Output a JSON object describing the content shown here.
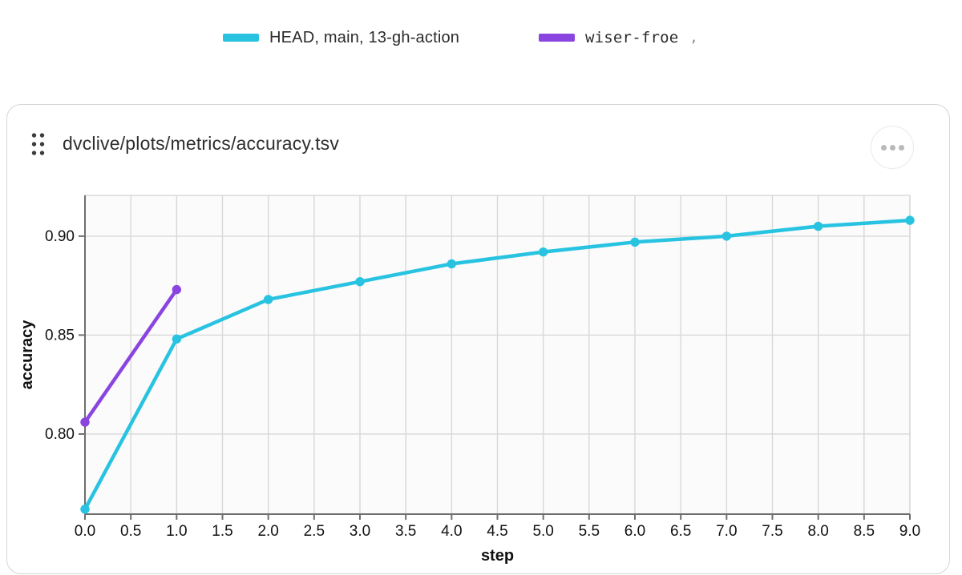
{
  "legend": {
    "items": [
      {
        "label": "HEAD, main, 13-gh-action",
        "suffix": "",
        "color": "#29c3e2",
        "font": "sans"
      },
      {
        "label": "wiser-froe",
        "suffix": ",",
        "color": "#8a45e0",
        "font": "mono"
      }
    ]
  },
  "card": {
    "title": "dvclive/plots/metrics/accuracy.tsv",
    "drag_handle_icon": "grip-dots",
    "menu_icon": "ellipsis-menu"
  },
  "chart_data": {
    "type": "line",
    "title": "",
    "xlabel": "step",
    "ylabel": "accuracy",
    "xlim": [
      0,
      9
    ],
    "ylim": [
      0.7595,
      0.9206
    ],
    "x_ticks": [
      0,
      0.5,
      1,
      1.5,
      2,
      2.5,
      3,
      3.5,
      4,
      4.5,
      5,
      5.5,
      6,
      6.5,
      7,
      7.5,
      8,
      8.5,
      9
    ],
    "y_ticks": [
      0.8,
      0.85,
      0.9
    ],
    "grid": true,
    "legend_position": "top",
    "colors": {
      "grid": "#d8d8d8",
      "axis": "#6e6e6e",
      "tick_label": "#111111",
      "plot_bg": "#fcfbfb"
    },
    "series": [
      {
        "name": "HEAD, main, 13-gh-action",
        "color": "#29c3e2",
        "x": [
          0,
          1,
          2,
          3,
          4,
          5,
          6,
          7,
          8,
          9
        ],
        "y": [
          0.762,
          0.848,
          0.868,
          0.877,
          0.886,
          0.892,
          0.897,
          0.9,
          0.905,
          0.908
        ]
      },
      {
        "name": "wiser-froe",
        "color": "#8a45e0",
        "x": [
          0,
          1
        ],
        "y": [
          0.806,
          0.873
        ]
      }
    ]
  }
}
